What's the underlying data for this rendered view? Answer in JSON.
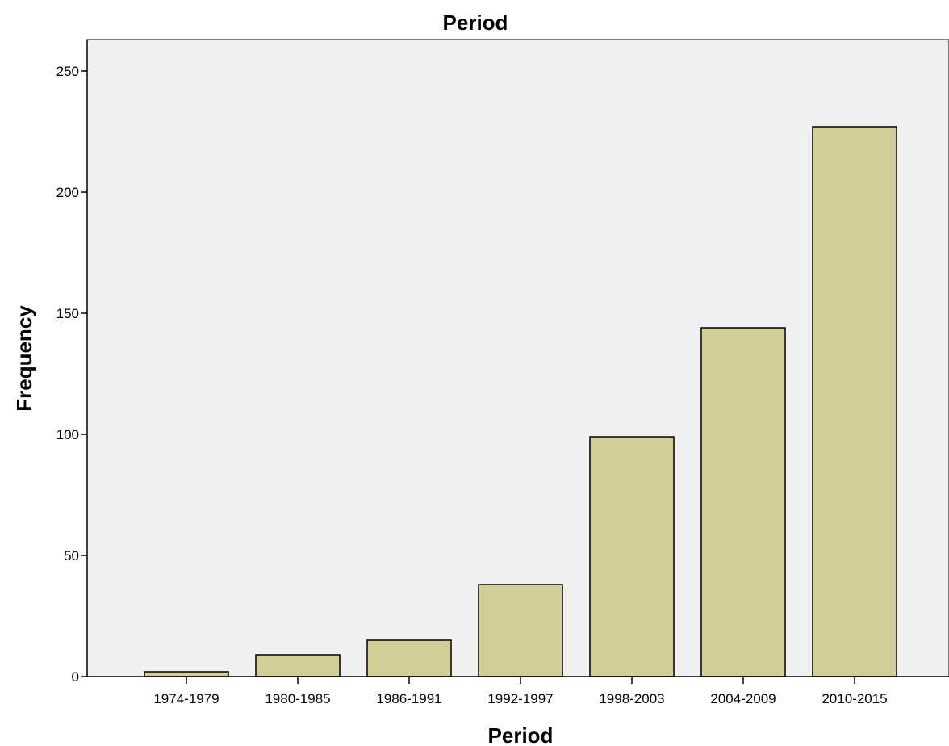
{
  "chart_data": {
    "type": "bar",
    "title": "Period",
    "xlabel": "Period",
    "ylabel": "Frequency",
    "categories": [
      "1974-1979",
      "1980-1985",
      "1986-1991",
      "1992-1997",
      "1998-2003",
      "2004-2009",
      "2010-2015"
    ],
    "values": [
      2,
      9,
      15,
      38,
      99,
      144,
      227
    ],
    "ylim": [
      0,
      263
    ],
    "yticks": [
      0,
      50,
      100,
      150,
      200,
      250
    ],
    "grid": false,
    "colors": {
      "bar_fill": "#d3ce97",
      "bar_stroke": "#000000",
      "plot_background": "#f0f0f0",
      "axis": "#000000"
    }
  }
}
